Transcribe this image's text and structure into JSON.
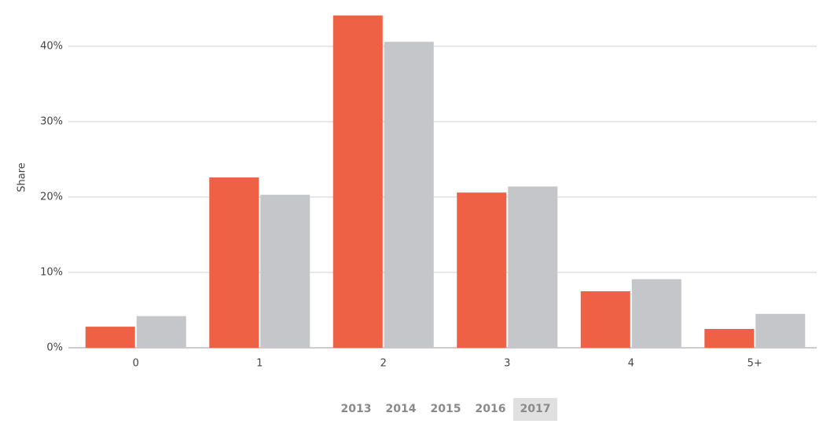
{
  "chart_data": {
    "type": "bar",
    "y_label": "Share",
    "categories": [
      "0",
      "1",
      "2",
      "3",
      "4",
      "5+"
    ],
    "series": [
      {
        "color": "#ee6145",
        "values": [
          2.8,
          22.6,
          44.1,
          20.6,
          7.5,
          2.5
        ]
      },
      {
        "color": "#c5c6ca",
        "values": [
          4.2,
          20.3,
          40.6,
          21.4,
          9.1,
          4.5
        ]
      }
    ],
    "ylim": [
      0,
      45
    ],
    "yticks": [
      {
        "value": 0,
        "label": "0%"
      },
      {
        "value": 10,
        "label": "10%"
      },
      {
        "value": 20,
        "label": "20%"
      },
      {
        "value": 30,
        "label": "30%"
      },
      {
        "value": 40,
        "label": "40%"
      }
    ],
    "grid": true
  },
  "controls": {
    "years": [
      "2013",
      "2014",
      "2015",
      "2016",
      "2017"
    ],
    "selected_index": 4
  }
}
